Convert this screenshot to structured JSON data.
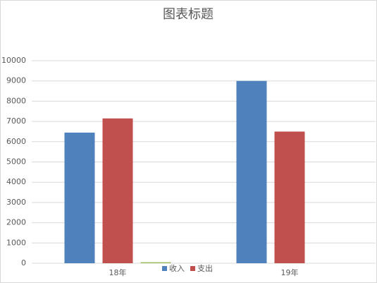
{
  "chart_data": {
    "type": "bar",
    "title": "图表标题",
    "categories": [
      "18年",
      "19年"
    ],
    "series": [
      {
        "name": "收入",
        "color": "#4f81bd",
        "values": [
          6450,
          9000
        ]
      },
      {
        "name": "支出",
        "color": "#c0504d",
        "values": [
          7150,
          6500
        ]
      },
      {
        "color": "#9bbb59",
        "values": [
          50,
          null
        ]
      }
    ],
    "ylim": [
      0,
      10000
    ],
    "yticks": [
      0,
      1000,
      2000,
      3000,
      4000,
      5000,
      6000,
      7000,
      8000,
      9000,
      10000
    ],
    "grid": true,
    "legend": "bottom"
  }
}
